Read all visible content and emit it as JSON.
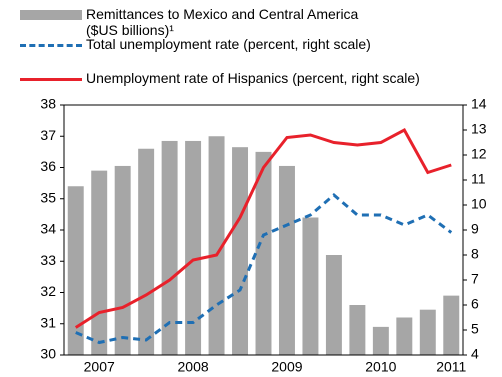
{
  "chart_data": {
    "type": "bar_line",
    "categories": [
      null,
      "2007",
      null,
      null,
      null,
      "2008",
      null,
      null,
      null,
      "2009",
      null,
      null,
      null,
      "2010",
      null,
      null,
      "2011"
    ],
    "series": [
      {
        "name": "Remittances to Mexico and Central America ($US billions)¹",
        "type": "bar",
        "color": "#a6a6a6",
        "values": [
          35.4,
          35.9,
          36.05,
          36.6,
          36.85,
          36.85,
          37.0,
          36.65,
          36.5,
          36.05,
          34.4,
          33.2,
          31.6,
          30.9,
          31.2,
          31.45,
          31.9
        ]
      },
      {
        "name": "Total unemployment rate (percent, right scale)",
        "type": "line",
        "dashed": true,
        "axis": "y2",
        "color": "#1f6fb4",
        "values": [
          4.9,
          4.5,
          4.7,
          4.6,
          5.3,
          5.3,
          6.0,
          6.6,
          8.8,
          9.2,
          9.6,
          10.4,
          9.6,
          9.6,
          9.2,
          9.6,
          8.9
        ]
      },
      {
        "name": "Unemployment rate of Hispanics (percent, right scale)",
        "type": "line",
        "dashed": false,
        "axis": "y2",
        "color": "#e8212b",
        "values": [
          5.1,
          5.7,
          5.9,
          6.4,
          7.0,
          7.8,
          8.0,
          9.5,
          11.5,
          12.7,
          12.8,
          12.5,
          12.4,
          12.5,
          13.0,
          11.3,
          11.6
        ]
      }
    ],
    "ylim": [
      30,
      38
    ],
    "yticks": [
      30,
      31,
      32,
      33,
      34,
      35,
      36,
      37,
      38
    ],
    "y2lim": [
      4,
      14
    ],
    "y2ticks": [
      4,
      5,
      6,
      7,
      8,
      9,
      10,
      11,
      12,
      13,
      14
    ]
  }
}
